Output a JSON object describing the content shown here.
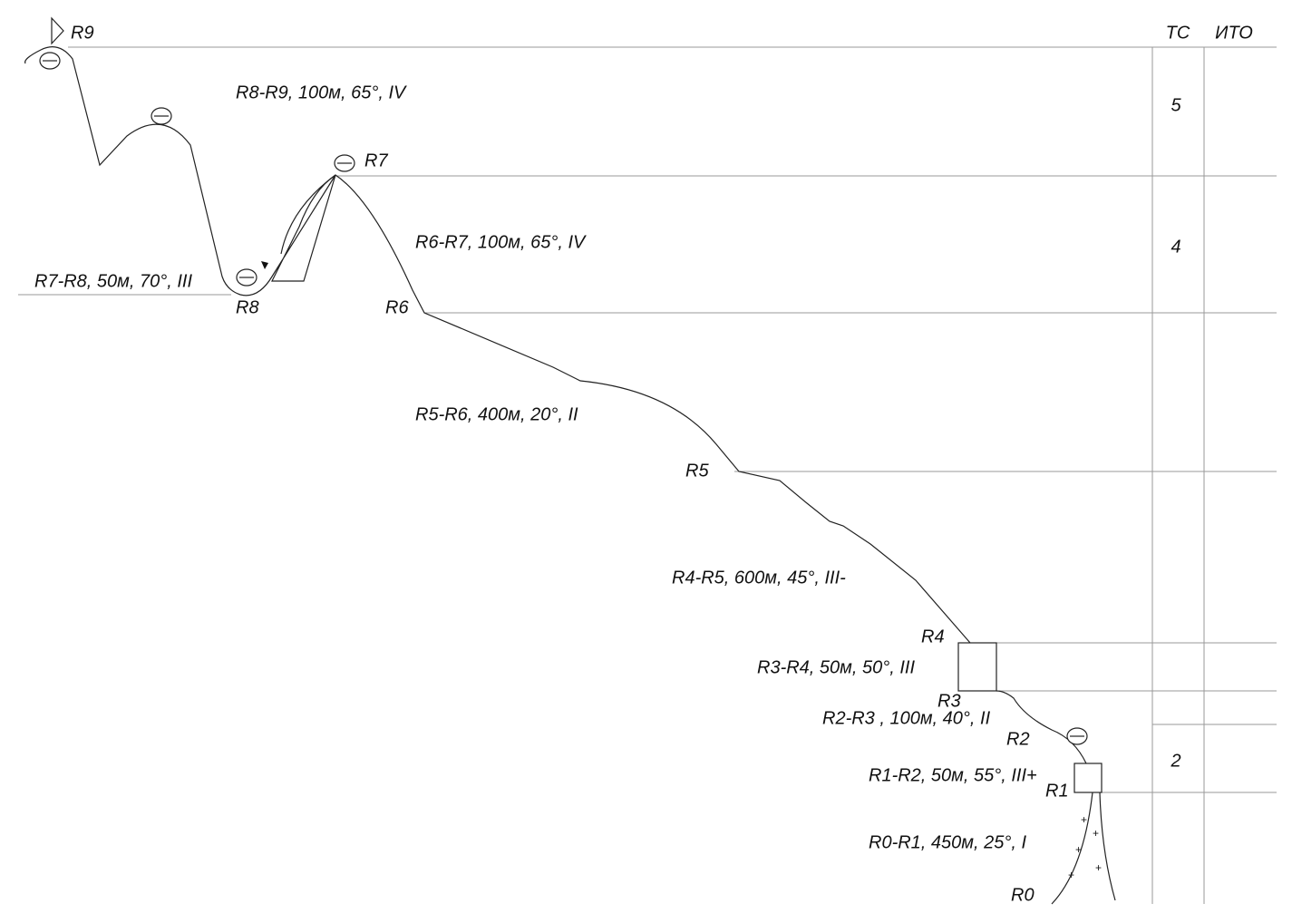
{
  "table": {
    "headers": [
      "ТС",
      "ИТО"
    ],
    "grades": [
      "5",
      "4",
      "2"
    ]
  },
  "points": [
    "R0",
    "R1",
    "R2",
    "R3",
    "R4",
    "R5",
    "R6",
    "R7",
    "R8",
    "R9"
  ],
  "segments": [
    "R0-R1, 450м, 25°,  I",
    "R1-R2, 50м, 55°, III+",
    "R2-R3 , 100м, 40°, II",
    "R3-R4, 50м, 50°, III",
    "R4-R5, 600м, 45°, III-",
    "R5-R6, 400м, 20°, II",
    "R6-R7, 100м, 65°, IV",
    "R7-R8, 50м, 70°, III",
    "R8-R9, 100м, 65°, IV"
  ]
}
